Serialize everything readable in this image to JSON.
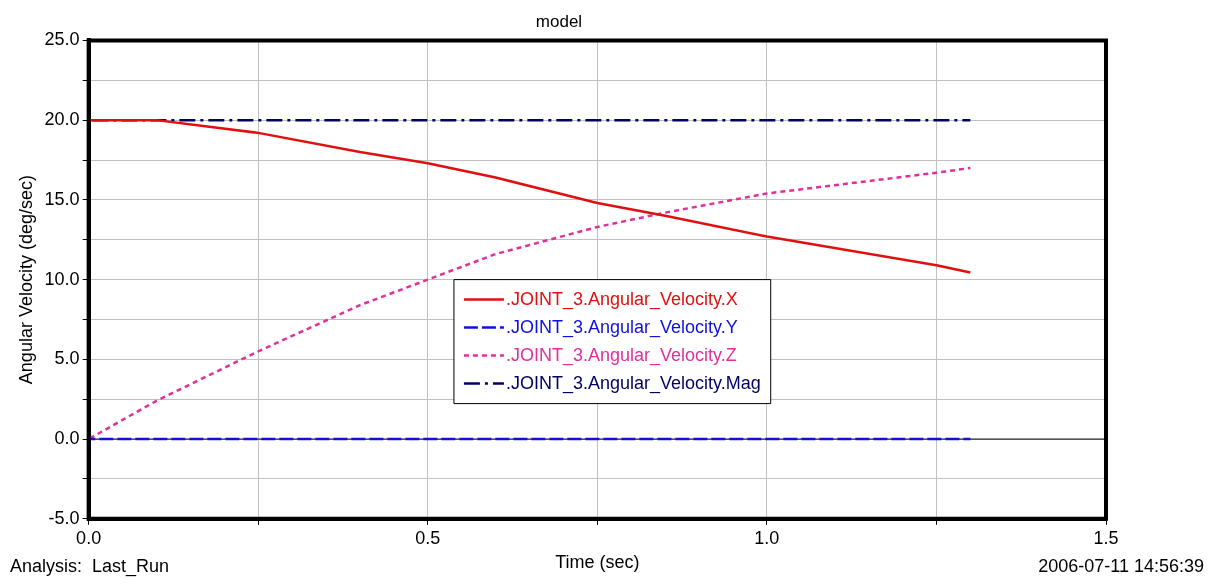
{
  "chart_data": {
    "type": "line",
    "title": "model",
    "xlabel": "Time (sec)",
    "ylabel": "Angular Velocity (deg/sec)",
    "annotations": [
      "Analysis:  Last_Run",
      "2006-07-11 14:56:39"
    ],
    "x": [
      0,
      0.1,
      0.25,
      0.4,
      0.5,
      0.6,
      0.75,
      0.85,
      1.0,
      1.25,
      1.3
    ],
    "series": [
      {
        "name": ".JOINT_3.Angular_Velocity.X",
        "color": "#e01010",
        "line_style": "solid",
        "values": [
          20.0,
          20.0,
          19.2,
          18.0,
          17.3,
          16.4,
          14.8,
          14.0,
          12.7,
          10.9,
          10.45
        ]
      },
      {
        "name": ".JOINT_3.Angular_Velocity.Y",
        "color": "#1010e0",
        "line_style": "dashed",
        "values": [
          0,
          0,
          0,
          0,
          0,
          0,
          0,
          0,
          0,
          0,
          0
        ]
      },
      {
        "name": ".JOINT_3.Angular_Velocity.Z",
        "color": "#e0309a",
        "line_style": "dotted",
        "values": [
          0,
          2.4,
          5.5,
          8.4,
          10.0,
          11.6,
          13.3,
          14.2,
          15.4,
          16.7,
          17.0
        ]
      },
      {
        "name": ".JOINT_3.Angular_Velocity.Mag",
        "color": "#000066",
        "line_style": "dashdot",
        "values": [
          20,
          20,
          20,
          20,
          20,
          20,
          20,
          20,
          20,
          20,
          20
        ]
      }
    ],
    "xlim": [
      0,
      1.5
    ],
    "xticks": [
      {
        "value": 0,
        "label": "0.0"
      },
      {
        "value": 0.25,
        "label": null
      },
      {
        "value": 0.5,
        "label": "0.5"
      },
      {
        "value": 0.75,
        "label": null
      },
      {
        "value": 1,
        "label": "1.0"
      },
      {
        "value": 1.25,
        "label": null
      },
      {
        "value": 1.5,
        "label": "1.5"
      }
    ],
    "ylim": [
      -5,
      25
    ],
    "yticks": [
      {
        "value": -5,
        "label": "-5.0"
      },
      {
        "value": -2.5,
        "label": null
      },
      {
        "value": 0,
        "label": "0.0"
      },
      {
        "value": 2.5,
        "label": null
      },
      {
        "value": 5,
        "label": "5.0"
      },
      {
        "value": 7.5,
        "label": null
      },
      {
        "value": 10,
        "label": "10.0"
      },
      {
        "value": 12.5,
        "label": null
      },
      {
        "value": 15,
        "label": "15.0"
      },
      {
        "value": 17.5,
        "label": null
      },
      {
        "value": 20,
        "label": "20.0"
      },
      {
        "value": 22.5,
        "label": null
      },
      {
        "value": 25,
        "label": "25.0"
      }
    ],
    "ref_lines": [
      {
        "axis": "y",
        "value": 0,
        "color": "#000000"
      }
    ],
    "grid": true,
    "legend": "center",
    "marker": "none"
  }
}
